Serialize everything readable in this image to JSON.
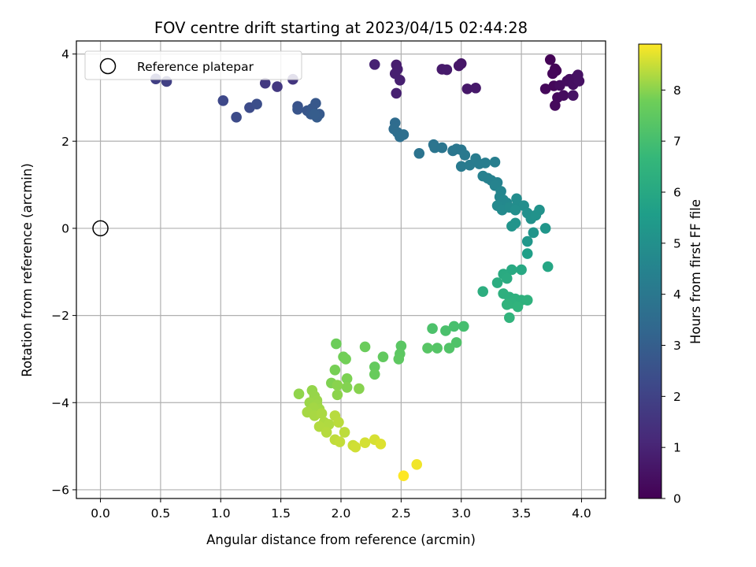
{
  "chart_data": {
    "type": "scatter",
    "title": "FOV centre drift starting at 2023/04/15 02:44:28",
    "xlabel": "Angular distance from reference (arcmin)",
    "ylabel": "Rotation from reference (arcmin)",
    "xlim": [
      -0.2,
      4.2
    ],
    "ylim": [
      -6.2,
      4.3
    ],
    "xticks": [
      0.0,
      0.5,
      1.0,
      1.5,
      2.0,
      2.5,
      3.0,
      3.5,
      4.0
    ],
    "xtick_labels": [
      "0.0",
      "0.5",
      "1.0",
      "1.5",
      "2.0",
      "2.5",
      "3.0",
      "3.5",
      "4.0"
    ],
    "yticks": [
      -6,
      -4,
      -2,
      0,
      2,
      4
    ],
    "ytick_labels": [
      "−6",
      "−4",
      "−2",
      "0",
      "2",
      "4"
    ],
    "grid": true,
    "legend": {
      "position": "top-left",
      "entries": [
        "Reference platepar"
      ]
    },
    "reference_point": {
      "x": 0.0,
      "y": 0.0
    },
    "colorbar": {
      "label": "Hours from first FF file",
      "colormap": "viridis",
      "range": [
        0,
        8.9
      ],
      "ticks": [
        0,
        1,
        2,
        3,
        4,
        5,
        6,
        7,
        8
      ],
      "tick_labels": [
        "0",
        "1",
        "2",
        "3",
        "4",
        "5",
        "6",
        "7",
        "8"
      ]
    },
    "points": [
      [
        3.74,
        3.87,
        0.05
      ],
      [
        3.79,
        3.62,
        0.1
      ],
      [
        3.78,
        3.66,
        0.1
      ],
      [
        3.76,
        3.55,
        0.15
      ],
      [
        3.7,
        3.2,
        0.2
      ],
      [
        3.77,
        3.27,
        0.2
      ],
      [
        3.8,
        3.0,
        0.25
      ],
      [
        3.78,
        2.82,
        0.25
      ],
      [
        3.82,
        3.28,
        0.3
      ],
      [
        3.85,
        3.05,
        0.3
      ],
      [
        3.88,
        3.38,
        0.35
      ],
      [
        3.9,
        3.42,
        0.35
      ],
      [
        3.93,
        3.3,
        0.4
      ],
      [
        3.95,
        3.45,
        0.4
      ],
      [
        3.97,
        3.52,
        0.45
      ],
      [
        3.98,
        3.38,
        0.45
      ],
      [
        3.93,
        3.05,
        0.5
      ],
      [
        3.0,
        3.78,
        0.6
      ],
      [
        2.98,
        3.73,
        0.62
      ],
      [
        3.05,
        3.2,
        0.65
      ],
      [
        3.12,
        3.22,
        0.68
      ],
      [
        2.84,
        3.65,
        0.72
      ],
      [
        2.88,
        3.64,
        0.75
      ],
      [
        2.46,
        3.75,
        0.8
      ],
      [
        2.47,
        3.65,
        0.82
      ],
      [
        2.45,
        3.55,
        0.85
      ],
      [
        2.49,
        3.4,
        0.88
      ],
      [
        2.46,
        3.1,
        0.9
      ],
      [
        2.28,
        3.76,
        0.95
      ],
      [
        1.6,
        3.42,
        1.6
      ],
      [
        1.47,
        3.25,
        1.65
      ],
      [
        1.37,
        3.33,
        1.7
      ],
      [
        0.46,
        3.43,
        1.9
      ],
      [
        0.55,
        3.37,
        1.92
      ],
      [
        1.02,
        2.93,
        2.2
      ],
      [
        1.13,
        2.55,
        2.3
      ],
      [
        1.24,
        2.77,
        2.35
      ],
      [
        1.3,
        2.85,
        2.4
      ],
      [
        1.64,
        2.8,
        2.6
      ],
      [
        1.64,
        2.73,
        2.65
      ],
      [
        1.72,
        2.7,
        2.7
      ],
      [
        1.76,
        2.75,
        2.75
      ],
      [
        1.79,
        2.87,
        2.75
      ],
      [
        1.75,
        2.62,
        2.8
      ],
      [
        1.82,
        2.62,
        2.85
      ],
      [
        1.8,
        2.55,
        2.9
      ],
      [
        1.78,
        2.62,
        2.95
      ],
      [
        2.45,
        2.42,
        3.5
      ],
      [
        2.44,
        2.28,
        3.55
      ],
      [
        2.47,
        2.2,
        3.58
      ],
      [
        2.49,
        2.1,
        3.62
      ],
      [
        2.52,
        2.15,
        3.65
      ],
      [
        2.65,
        1.72,
        3.8
      ],
      [
        2.77,
        1.92,
        3.85
      ],
      [
        2.78,
        1.85,
        3.88
      ],
      [
        2.84,
        1.85,
        3.9
      ],
      [
        2.93,
        1.78,
        3.95
      ],
      [
        2.96,
        1.82,
        3.98
      ],
      [
        3.0,
        1.8,
        4.0
      ],
      [
        3.03,
        1.68,
        4.05
      ],
      [
        3.0,
        1.42,
        4.1
      ],
      [
        3.07,
        1.45,
        4.15
      ],
      [
        3.12,
        1.6,
        4.18
      ],
      [
        3.15,
        1.48,
        4.2
      ],
      [
        3.2,
        1.5,
        4.25
      ],
      [
        3.28,
        1.52,
        4.3
      ],
      [
        3.18,
        1.2,
        4.35
      ],
      [
        3.22,
        1.15,
        4.38
      ],
      [
        3.25,
        1.1,
        4.4
      ],
      [
        3.3,
        1.05,
        4.45
      ],
      [
        3.28,
        0.98,
        4.5
      ],
      [
        3.33,
        0.85,
        4.55
      ],
      [
        3.32,
        0.72,
        4.6
      ],
      [
        3.35,
        0.65,
        4.65
      ],
      [
        3.38,
        0.58,
        4.7
      ],
      [
        3.3,
        0.52,
        4.72
      ],
      [
        3.34,
        0.42,
        4.75
      ],
      [
        3.4,
        0.48,
        4.8
      ],
      [
        3.46,
        0.68,
        4.85
      ],
      [
        3.47,
        0.55,
        4.9
      ],
      [
        3.52,
        0.52,
        4.92
      ],
      [
        3.45,
        0.42,
        4.95
      ],
      [
        3.55,
        0.35,
        5.0
      ],
      [
        3.58,
        0.22,
        5.05
      ],
      [
        3.62,
        0.3,
        5.1
      ],
      [
        3.65,
        0.42,
        5.1
      ],
      [
        3.45,
        0.12,
        5.15
      ],
      [
        3.42,
        0.05,
        5.15
      ],
      [
        3.6,
        -0.1,
        5.2
      ],
      [
        3.7,
        0.0,
        5.25
      ],
      [
        3.55,
        -0.3,
        5.3
      ],
      [
        3.55,
        -0.58,
        5.6
      ],
      [
        3.72,
        -0.88,
        5.9
      ],
      [
        3.5,
        -0.95,
        6.0
      ],
      [
        3.42,
        -0.95,
        6.05
      ],
      [
        3.35,
        -1.05,
        6.1
      ],
      [
        3.38,
        -1.15,
        6.15
      ],
      [
        3.3,
        -1.25,
        6.2
      ],
      [
        3.18,
        -1.45,
        6.25
      ],
      [
        3.35,
        -1.5,
        6.3
      ],
      [
        3.4,
        -1.58,
        6.32
      ],
      [
        3.45,
        -1.62,
        6.35
      ],
      [
        3.5,
        -1.65,
        6.38
      ],
      [
        3.55,
        -1.65,
        6.4
      ],
      [
        3.42,
        -1.72,
        6.42
      ],
      [
        3.38,
        -1.75,
        6.45
      ],
      [
        3.47,
        -1.8,
        6.48
      ],
      [
        3.4,
        -2.05,
        6.5
      ],
      [
        3.02,
        -2.25,
        7.0
      ],
      [
        2.94,
        -2.25,
        7.05
      ],
      [
        2.87,
        -2.35,
        7.1
      ],
      [
        2.76,
        -2.3,
        7.15
      ],
      [
        2.96,
        -2.62,
        7.2
      ],
      [
        2.9,
        -2.75,
        7.25
      ],
      [
        2.8,
        -2.75,
        7.3
      ],
      [
        2.72,
        -2.75,
        7.35
      ],
      [
        2.5,
        -2.7,
        7.4
      ],
      [
        2.49,
        -2.88,
        7.45
      ],
      [
        2.48,
        -3.0,
        7.5
      ],
      [
        2.35,
        -2.95,
        7.55
      ],
      [
        2.28,
        -3.18,
        7.6
      ],
      [
        2.28,
        -3.35,
        7.65
      ],
      [
        2.2,
        -2.72,
        7.7
      ],
      [
        1.96,
        -2.65,
        7.75
      ],
      [
        2.02,
        -2.95,
        7.8
      ],
      [
        2.04,
        -3.0,
        7.82
      ],
      [
        1.95,
        -3.25,
        7.85
      ],
      [
        2.05,
        -3.45,
        7.9
      ],
      [
        1.92,
        -3.55,
        7.92
      ],
      [
        2.05,
        -3.65,
        7.95
      ],
      [
        2.15,
        -3.68,
        7.98
      ],
      [
        1.97,
        -3.6,
        8.0
      ],
      [
        1.97,
        -3.82,
        8.02
      ],
      [
        1.65,
        -3.8,
        8.05
      ],
      [
        1.76,
        -3.72,
        8.08
      ],
      [
        1.78,
        -3.85,
        8.1
      ],
      [
        1.8,
        -3.95,
        8.12
      ],
      [
        1.74,
        -4.0,
        8.14
      ],
      [
        1.8,
        -4.05,
        8.16
      ],
      [
        1.82,
        -4.15,
        8.18
      ],
      [
        1.77,
        -4.12,
        8.2
      ],
      [
        1.72,
        -4.22,
        8.22
      ],
      [
        1.78,
        -4.3,
        8.24
      ],
      [
        1.84,
        -4.25,
        8.26
      ],
      [
        1.86,
        -4.45,
        8.28
      ],
      [
        1.9,
        -4.5,
        8.3
      ],
      [
        1.82,
        -4.55,
        8.32
      ],
      [
        1.88,
        -4.68,
        8.34
      ],
      [
        1.95,
        -4.3,
        8.36
      ],
      [
        1.98,
        -4.45,
        8.38
      ],
      [
        2.03,
        -4.68,
        8.4
      ],
      [
        1.95,
        -4.85,
        8.42
      ],
      [
        1.99,
        -4.9,
        8.45
      ],
      [
        2.1,
        -4.98,
        8.5
      ],
      [
        2.12,
        -5.02,
        8.55
      ],
      [
        2.2,
        -4.92,
        8.58
      ],
      [
        2.28,
        -4.85,
        8.6
      ],
      [
        2.33,
        -4.95,
        8.65
      ],
      [
        2.63,
        -5.42,
        8.8
      ],
      [
        2.52,
        -5.68,
        8.9
      ]
    ]
  }
}
